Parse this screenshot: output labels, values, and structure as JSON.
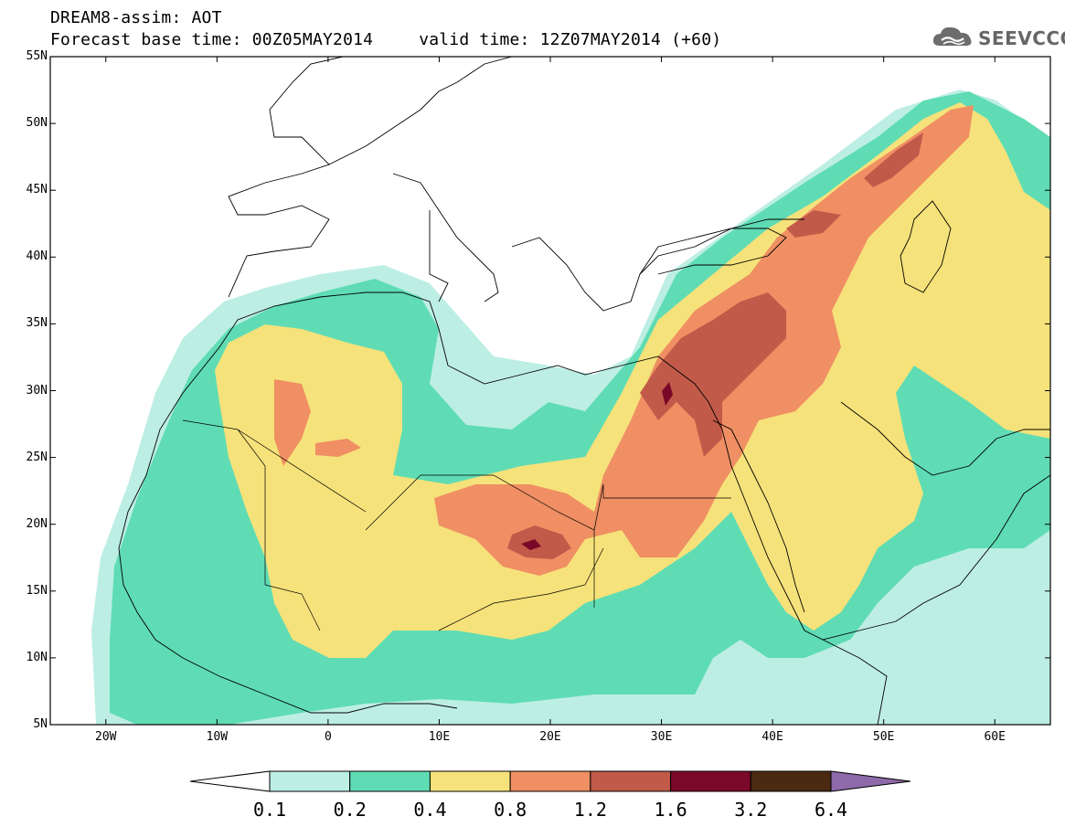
{
  "header": {
    "title_line1": "DREAM8-assim: AOT",
    "base_time": "Forecast base time: 00Z05MAY2014",
    "valid_time": "valid time: 12Z07MAY2014 (+60)"
  },
  "logo": {
    "text": "SEEVCCC",
    "icon": "cloud-icon"
  },
  "map": {
    "region": {
      "lon_min": -25,
      "lon_max": 65,
      "lat_min": 5,
      "lat_max": 55
    },
    "lat_labels": [
      "55N",
      "50N",
      "45N",
      "40N",
      "35N",
      "30N",
      "25N",
      "20N",
      "15N",
      "10N",
      "5N"
    ],
    "lon_labels": [
      "20W",
      "10W",
      "0",
      "10E",
      "20E",
      "30E",
      "40E",
      "50E",
      "60E"
    ],
    "field": "Aerosol optical thickness (dust)"
  },
  "colorbar": {
    "levels": [
      "0.1",
      "0.2",
      "0.4",
      "0.8",
      "1.2",
      "1.6",
      "3.2",
      "6.4"
    ],
    "colors": [
      "#ffffff",
      "#bdeee4",
      "#5fdcb4",
      "#f6e27a",
      "#ef8f63",
      "#c25a49",
      "#7a0828",
      "#4a2a10",
      "#8e6aaa"
    ]
  },
  "colors": {
    "c1": "#bdeee4",
    "c2": "#5fdcb4",
    "c3": "#f6e27a",
    "c4": "#ef8f63",
    "c5": "#c25a49",
    "c6": "#7a0828"
  }
}
